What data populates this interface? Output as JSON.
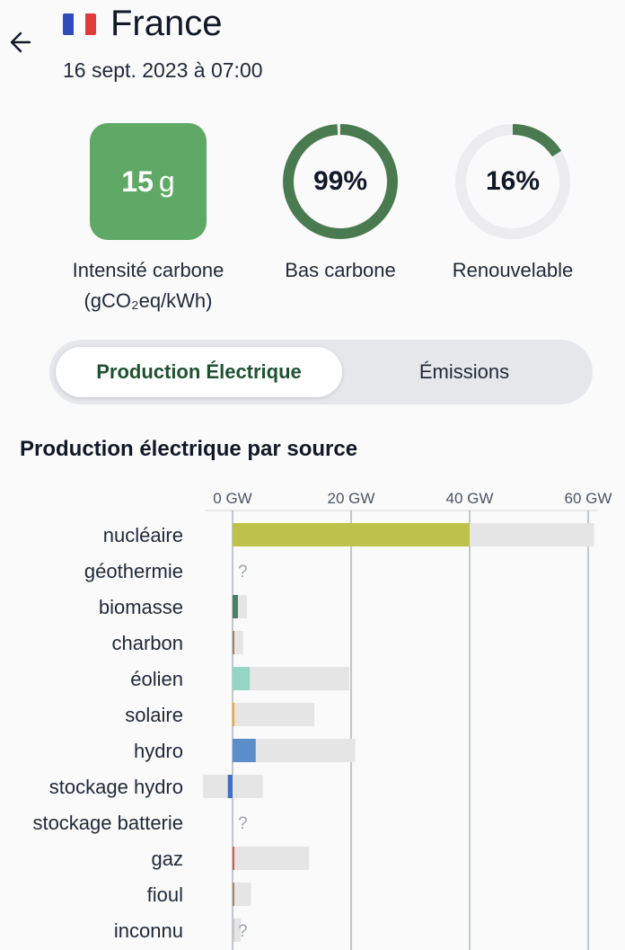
{
  "header": {
    "back_icon": "arrow-left-icon",
    "flag_icon": "france-flag-icon",
    "title": "France",
    "datetime": "16 sept. 2023 à 07:00"
  },
  "kpis": {
    "carbon_intensity": {
      "value": "15",
      "unit": "g",
      "label_line1": "Intensité carbone",
      "label_line2": "(gCO₂eq/kWh)",
      "color": "#5fa865"
    },
    "low_carbon": {
      "value_text": "99%",
      "fraction": 0.99,
      "label": "Bas carbone",
      "color": "#4a7a4f"
    },
    "renewable": {
      "value_text": "16%",
      "fraction": 0.16,
      "label": "Renouvelable",
      "color": "#4a7a4f"
    }
  },
  "toggle": {
    "active_label": "Production Électrique",
    "inactive_label": "Émissions"
  },
  "section_title": "Production électrique par source",
  "chart_data": {
    "type": "bar",
    "orientation": "horizontal",
    "x_unit": "GW",
    "x_ticks": [
      "0 GW",
      "20 GW",
      "40 GW",
      "60 GW"
    ],
    "x_tick_values": [
      0,
      20,
      40,
      60
    ],
    "xlim": [
      -5,
      61
    ],
    "grid": true,
    "missing_marker": "?",
    "categories": [
      "nucléaire",
      "géothermie",
      "biomasse",
      "charbon",
      "éolien",
      "solaire",
      "hydro",
      "stockage hydro",
      "stockage batterie",
      "gaz",
      "fioul",
      "inconnu"
    ],
    "values": [
      40,
      null,
      0.9,
      0.1,
      2.9,
      0.2,
      3.9,
      -0.8,
      null,
      0.2,
      0.1,
      0
    ],
    "capacity_max": [
      61,
      null,
      2.4,
      1.8,
      19.7,
      13.8,
      20.7,
      5.1,
      null,
      12.9,
      3.1,
      1.4
    ],
    "capacity_min": [
      0,
      null,
      0,
      0,
      0,
      0,
      0,
      -5,
      null,
      0,
      0,
      0
    ],
    "colors": [
      "#bcc24a",
      null,
      "#4d7d67",
      "#a0826d",
      "#95d5c3",
      "#f5a623",
      "#5b8dc9",
      "#3e6fc9",
      null,
      "#d05d5d",
      "#a08b7a",
      "#c9c9c9"
    ],
    "capacity_color": "#e5e5e5"
  }
}
